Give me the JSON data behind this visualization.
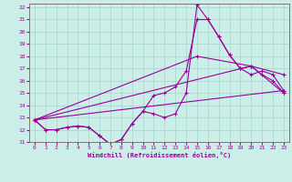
{
  "xlabel": "Windchill (Refroidissement éolien,°C)",
  "bg_color": "#cceee8",
  "grid_color": "#aad8d0",
  "line_color": "#990099",
  "xlim": [
    -0.5,
    23.5
  ],
  "ylim": [
    11,
    22.3
  ],
  "xticks": [
    0,
    1,
    2,
    3,
    4,
    5,
    6,
    7,
    8,
    9,
    10,
    11,
    12,
    13,
    14,
    15,
    16,
    17,
    18,
    19,
    20,
    21,
    22,
    23
  ],
  "yticks": [
    11,
    12,
    13,
    14,
    15,
    16,
    17,
    18,
    19,
    20,
    21,
    22
  ],
  "line1_x": [
    0,
    1,
    2,
    3,
    4,
    5,
    6,
    7,
    8,
    9,
    10,
    11,
    12,
    13,
    14,
    15,
    16,
    17,
    18,
    19,
    20,
    21,
    22,
    23
  ],
  "line1_y": [
    12.8,
    12.0,
    12.0,
    12.2,
    12.3,
    12.2,
    11.5,
    10.8,
    11.2,
    12.5,
    13.5,
    13.3,
    13.0,
    13.3,
    15.0,
    22.2,
    21.0,
    19.6,
    18.1,
    17.0,
    16.5,
    16.8,
    16.5,
    15.2
  ],
  "line2_x": [
    0,
    1,
    2,
    3,
    4,
    5,
    6,
    7,
    8,
    9,
    10,
    11,
    12,
    13,
    14,
    15,
    16,
    17,
    18,
    19,
    20,
    21,
    22,
    23
  ],
  "line2_y": [
    12.8,
    12.0,
    12.0,
    12.2,
    12.3,
    12.2,
    11.5,
    10.8,
    11.2,
    12.5,
    13.5,
    14.8,
    15.0,
    15.5,
    16.8,
    21.0,
    21.0,
    19.6,
    18.1,
    17.0,
    17.2,
    16.5,
    16.0,
    15.0
  ],
  "line3_x": [
    0,
    23
  ],
  "line3_y": [
    12.8,
    15.2
  ],
  "line4_x": [
    0,
    20,
    23
  ],
  "line4_y": [
    12.8,
    17.2,
    15.0
  ],
  "line5_x": [
    0,
    15,
    20,
    23
  ],
  "line5_y": [
    12.8,
    18.0,
    17.2,
    16.5
  ]
}
